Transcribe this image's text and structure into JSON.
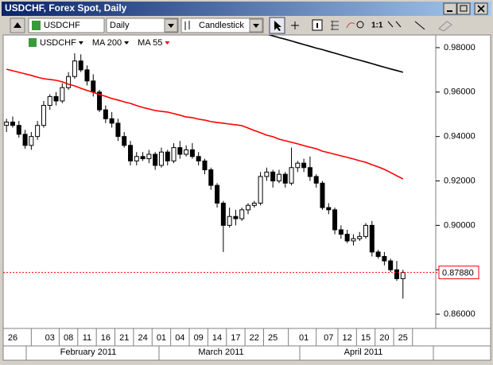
{
  "window": {
    "title": "USDCHF, Forex Spot, Daily"
  },
  "toolbar": {
    "symbol": "USDCHF",
    "period": "Daily",
    "chart_style": "Candlestick",
    "zoom": "1:1"
  },
  "chart_data": {
    "type": "candlestick",
    "categories": [
      null,
      "26",
      null,
      null,
      null,
      null,
      null,
      "03",
      null,
      null,
      "08",
      null,
      null,
      "11",
      null,
      null,
      "16",
      null,
      null,
      "21",
      null,
      null,
      "24",
      null,
      null,
      "01",
      null,
      null,
      "04",
      null,
      null,
      "09",
      null,
      null,
      "14",
      null,
      null,
      "17",
      null,
      null,
      "22",
      null,
      null,
      "25",
      null,
      null,
      null,
      null,
      "01",
      null,
      null,
      null,
      "07",
      null,
      null,
      "12",
      null,
      null,
      "15",
      null,
      null,
      "20",
      null,
      null,
      "25"
    ],
    "months": [
      "February 2011",
      "March 2011",
      "April 2011"
    ],
    "series": [
      {
        "name": "USDCHF",
        "type": "candlestick",
        "up_color": "#ffffff",
        "down_color": "#000000",
        "open": [
          0.945,
          0.9465,
          0.945,
          0.941,
          0.936,
          0.94,
          0.945,
          0.954,
          0.958,
          0.956,
          0.962,
          0.967,
          0.974,
          0.97,
          0.965,
          0.96,
          0.952,
          0.948,
          0.946,
          0.94,
          0.936,
          0.929,
          0.931,
          0.93,
          0.932,
          0.927,
          0.933,
          0.929,
          0.935,
          0.932,
          0.934,
          0.931,
          0.929,
          0.925,
          0.918,
          0.91,
          0.9,
          0.904,
          0.903,
          0.907,
          0.909,
          0.91,
          0.922,
          0.924,
          0.92,
          0.923,
          0.919,
          0.926,
          0.928,
          0.926,
          0.922,
          0.919,
          0.908,
          0.907,
          0.898,
          0.896,
          0.893,
          0.894,
          0.895,
          0.9,
          0.888,
          0.886,
          0.884,
          0.88,
          0.876
        ],
        "high": [
          0.948,
          0.949,
          0.947,
          0.943,
          0.942,
          0.947,
          0.956,
          0.959,
          0.96,
          0.964,
          0.969,
          0.9775,
          0.977,
          0.972,
          0.968,
          0.961,
          0.954,
          0.951,
          0.948,
          0.942,
          0.938,
          0.933,
          0.933,
          0.934,
          0.933,
          0.935,
          0.934,
          0.937,
          0.938,
          0.936,
          0.937,
          0.933,
          0.93,
          0.926,
          0.919,
          0.911,
          0.908,
          0.907,
          0.908,
          0.91,
          0.911,
          0.924,
          0.926,
          0.925,
          0.925,
          0.924,
          0.935,
          0.929,
          0.93,
          0.931,
          0.923,
          0.92,
          0.91,
          0.908,
          0.9,
          0.898,
          0.896,
          0.897,
          0.901,
          0.902,
          0.889,
          0.888,
          0.885,
          0.884,
          0.88
        ],
        "low": [
          0.942,
          0.944,
          0.9395,
          0.9345,
          0.934,
          0.9385,
          0.944,
          0.952,
          0.954,
          0.955,
          0.961,
          0.966,
          0.969,
          0.963,
          0.958,
          0.951,
          0.946,
          0.944,
          0.938,
          0.935,
          0.927,
          0.927,
          0.929,
          0.928,
          0.925,
          0.926,
          0.927,
          0.928,
          0.93,
          0.931,
          0.93,
          0.927,
          0.923,
          0.916,
          0.908,
          0.888,
          0.899,
          0.9,
          0.902,
          0.905,
          0.908,
          0.909,
          0.92,
          0.917,
          0.919,
          0.917,
          0.918,
          0.924,
          0.924,
          0.92,
          0.917,
          0.907,
          0.905,
          0.896,
          0.894,
          0.892,
          0.891,
          0.893,
          0.894,
          0.886,
          0.885,
          0.882,
          0.879,
          0.875,
          0.867
        ],
        "close": [
          0.9465,
          0.945,
          0.941,
          0.936,
          0.94,
          0.945,
          0.954,
          0.958,
          0.956,
          0.962,
          0.967,
          0.974,
          0.97,
          0.965,
          0.96,
          0.952,
          0.948,
          0.946,
          0.94,
          0.936,
          0.929,
          0.931,
          0.93,
          0.932,
          0.927,
          0.933,
          0.929,
          0.935,
          0.932,
          0.934,
          0.931,
          0.929,
          0.925,
          0.918,
          0.91,
          0.9,
          0.904,
          0.903,
          0.907,
          0.909,
          0.91,
          0.922,
          0.924,
          0.92,
          0.923,
          0.919,
          0.926,
          0.928,
          0.926,
          0.922,
          0.919,
          0.908,
          0.907,
          0.898,
          0.896,
          0.893,
          0.894,
          0.895,
          0.9,
          0.888,
          0.886,
          0.884,
          0.88,
          0.876,
          0.8788
        ]
      },
      {
        "name": "MA 200",
        "color": "#000000",
        "values": [
          null,
          null,
          null,
          null,
          null,
          null,
          null,
          null,
          null,
          null,
          null,
          null,
          null,
          null,
          null,
          null,
          null,
          null,
          null,
          null,
          null,
          null,
          null,
          null,
          null,
          null,
          null,
          null,
          null,
          null,
          null,
          null,
          null,
          null,
          null,
          null,
          null,
          null,
          null,
          null,
          null,
          null,
          0.9861,
          0.9853,
          0.9845,
          0.9838,
          0.983,
          0.9822,
          0.9814,
          0.9806,
          0.9798,
          0.9791,
          0.9783,
          0.9775,
          0.9767,
          0.9759,
          0.9751,
          0.9744,
          0.9736,
          0.9728,
          0.972,
          0.9712,
          0.9704,
          0.9697,
          0.9689
        ]
      },
      {
        "name": "MA 55",
        "color": "#ff0000",
        "values": [
          0.9703,
          0.9696,
          0.9689,
          0.9682,
          0.9675,
          0.9667,
          0.966,
          0.9657,
          0.9653,
          0.9646,
          0.9635,
          0.9628,
          0.9617,
          0.9607,
          0.9599,
          0.9589,
          0.9581,
          0.9571,
          0.9564,
          0.9556,
          0.9549,
          0.9539,
          0.9531,
          0.9524,
          0.9517,
          0.9513,
          0.951,
          0.9503,
          0.9496,
          0.9488,
          0.9485,
          0.9478,
          0.9474,
          0.9467,
          0.9463,
          0.946,
          0.9456,
          0.9453,
          0.9449,
          0.9438,
          0.9427,
          0.9417,
          0.9406,
          0.9399,
          0.9388,
          0.9381,
          0.9374,
          0.9367,
          0.9359,
          0.9352,
          0.9345,
          0.9334,
          0.9327,
          0.932,
          0.9313,
          0.9306,
          0.9299,
          0.9291,
          0.9284,
          0.9273,
          0.9263,
          0.9252,
          0.9238,
          0.9223,
          0.9209
        ]
      }
    ],
    "last_price": {
      "value": 0.8788,
      "label": "0.87880",
      "color": "#ff0000"
    },
    "ylim": [
      0.8536,
      0.9857
    ],
    "yticks": [
      {
        "value": 0.86,
        "label": "0.86000"
      },
      {
        "value": 0.88,
        "label": "0.88000"
      },
      {
        "value": 0.9,
        "label": "0.90000"
      },
      {
        "value": 0.92,
        "label": "0.92000"
      },
      {
        "value": 0.94,
        "label": "0.94000"
      },
      {
        "value": 0.96,
        "label": "0.96000"
      },
      {
        "value": 0.98,
        "label": "0.98000"
      }
    ],
    "grid": false
  }
}
